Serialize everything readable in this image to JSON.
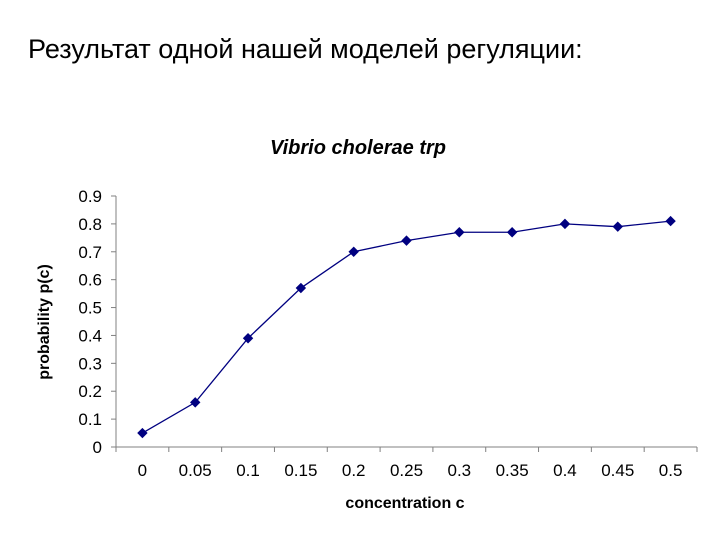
{
  "slide": {
    "title": "Результат одной нашей моделей регуляции:"
  },
  "chart_data": {
    "type": "line",
    "title": "Vibrio cholerae trp",
    "xlabel": "concentration c",
    "ylabel": "probability p(c)",
    "categories": [
      "0",
      "0.05",
      "0.1",
      "0.15",
      "0.2",
      "0.25",
      "0.3",
      "0.35",
      "0.4",
      "0.45",
      "0.5"
    ],
    "y_ticks": [
      "0",
      "0.1",
      "0.2",
      "0.3",
      "0.4",
      "0.5",
      "0.6",
      "0.7",
      "0.8",
      "0.9"
    ],
    "ylim": [
      0,
      0.9
    ],
    "grid": false,
    "legend": "none",
    "series": [
      {
        "values": [
          0.05,
          0.16,
          0.39,
          0.57,
          0.7,
          0.74,
          0.77,
          0.77,
          0.8,
          0.79,
          0.81
        ]
      }
    ],
    "colors": {
      "line": "#000080",
      "marker": "#000080",
      "axis": "#808080"
    }
  }
}
